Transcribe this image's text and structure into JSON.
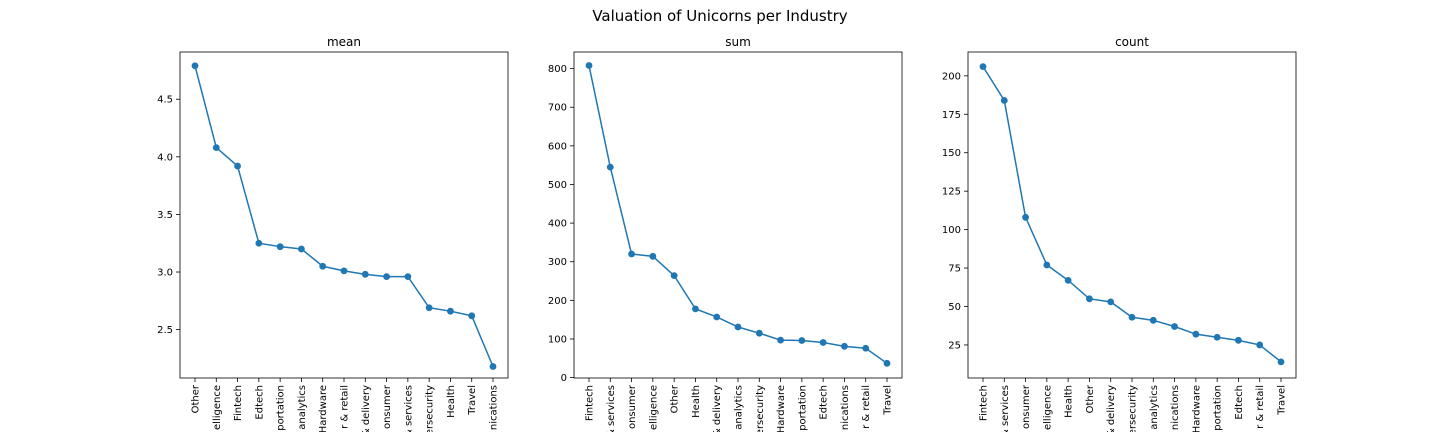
{
  "figure_title": "Valuation of Unicorns per Industry",
  "series_color": "#1f77b4",
  "chart_data": [
    {
      "type": "line",
      "title": "mean",
      "xlabel": "",
      "ylabel": "",
      "ylim": [
        2.08,
        4.91
      ],
      "yticks": [
        2.5,
        3.0,
        3.5,
        4.0,
        4.5
      ],
      "ytick_labels": [
        "2.5",
        "3.0",
        "3.5",
        "4.0",
        "4.5"
      ],
      "categories": [
        "Other",
        "Artificial intelligence",
        "Fintech",
        "Edtech",
        "Auto & transportation",
        "Data management & analytics",
        "Hardware",
        "E-commerce & direct-to-consumer & retail",
        "Supply chain, logistics, & delivery",
        "Consumer",
        "Internet software & services",
        "Cybersecurity",
        "Health",
        "Travel",
        "Mobile & telecommunications"
      ],
      "tick_labels": [
        "Other",
        "elligence",
        "Fintech",
        "Edtech",
        "portation",
        "analytics",
        "Hardware",
        "r & retail",
        "& delivery",
        "onsumer",
        "& services",
        "ersecurity",
        "Health",
        "Travel",
        "nications"
      ],
      "values": [
        4.79,
        4.08,
        3.92,
        3.25,
        3.22,
        3.2,
        3.05,
        3.01,
        2.98,
        2.96,
        2.96,
        2.69,
        2.66,
        2.62,
        2.18
      ]
    },
    {
      "type": "line",
      "title": "sum",
      "xlabel": "",
      "ylabel": "",
      "ylim": [
        -1,
        843
      ],
      "yticks": [
        0,
        100,
        200,
        300,
        400,
        500,
        600,
        700,
        800
      ],
      "ytick_labels": [
        "0",
        "100",
        "200",
        "300",
        "400",
        "500",
        "600",
        "700",
        "800"
      ],
      "categories": [
        "Fintech",
        "Internet software & services",
        "E-commerce & direct-to-consumer",
        "Artificial intelligence",
        "Other",
        "Health",
        "Supply chain, logistics, & delivery",
        "Data management & analytics",
        "Cybersecurity",
        "Hardware",
        "Auto & transportation",
        "Edtech",
        "Mobile & telecommunications",
        "Consumer & retail",
        "Travel"
      ],
      "tick_labels": [
        "Fintech",
        "& services",
        "onsumer",
        "elligence",
        "Other",
        "Health",
        "& delivery",
        "analytics",
        "ersecurity",
        "Hardware",
        "portation",
        "Edtech",
        "nications",
        "r & retail",
        "Travel"
      ],
      "values": [
        808,
        545,
        320,
        314,
        264,
        178,
        157,
        131,
        115,
        97,
        96,
        91,
        81,
        76,
        37
      ]
    },
    {
      "type": "line",
      "title": "count",
      "xlabel": "",
      "ylabel": "",
      "ylim": [
        3.5,
        215.5
      ],
      "yticks": [
        25,
        50,
        75,
        100,
        125,
        150,
        175,
        200
      ],
      "ytick_labels": [
        "25",
        "50",
        "75",
        "100",
        "125",
        "150",
        "175",
        "200"
      ],
      "categories": [
        "Fintech",
        "Internet software & services",
        "E-commerce & direct-to-consumer",
        "Artificial intelligence",
        "Health",
        "Other",
        "Supply chain, logistics, & delivery",
        "Cybersecurity",
        "Data management & analytics",
        "Mobile & telecommunications",
        "Hardware",
        "Auto & transportation",
        "Edtech",
        "Consumer & retail",
        "Travel"
      ],
      "tick_labels": [
        "Fintech",
        "& services",
        "onsumer",
        "elligence",
        "Health",
        "Other",
        "& delivery",
        "ersecurity",
        "analytics",
        "nications",
        "Hardware",
        "portation",
        "Edtech",
        "r & retail",
        "Travel"
      ],
      "values": [
        206,
        184,
        108,
        77,
        67,
        55,
        53,
        43,
        41,
        37,
        32,
        30,
        28,
        25,
        14
      ]
    }
  ]
}
